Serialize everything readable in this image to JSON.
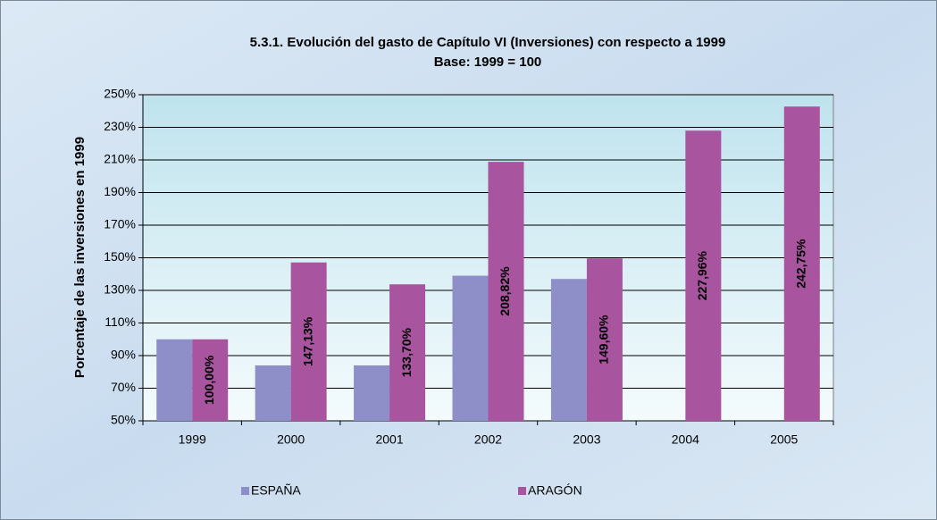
{
  "chart_data": {
    "type": "bar",
    "title": "5.3.1. Evolución del gasto de Capítulo VI (Inversiones) con respecto a 1999",
    "subtitle": "Base: 1999 = 100",
    "y_label": "Porcentaje de las inversiones en 1999",
    "categories": [
      "1999",
      "2000",
      "2001",
      "2002",
      "2003",
      "2004",
      "2005"
    ],
    "series": [
      {
        "name": "ESPAÑA",
        "color": "#8e8ec8",
        "values": [
          100,
          84,
          84,
          139,
          137,
          null,
          null
        ]
      },
      {
        "name": "ARAGÓN",
        "color": "#a8549e",
        "values": [
          100,
          147.13,
          133.7,
          208.82,
          149.6,
          227.96,
          242.75
        ],
        "value_labels": [
          "100,00%",
          "147,13%",
          "133,70%",
          "208,82%",
          "149,60%",
          "227,96%",
          "242,75%"
        ]
      }
    ],
    "ylim": [
      50,
      250
    ],
    "yticks": [
      {
        "value": 50,
        "label": "50%"
      },
      {
        "value": 70,
        "label": "70%"
      },
      {
        "value": 90,
        "label": "90%"
      },
      {
        "value": 110,
        "label": "110%"
      },
      {
        "value": 130,
        "label": "130%"
      },
      {
        "value": 150,
        "label": "150%"
      },
      {
        "value": 170,
        "label": "170%"
      },
      {
        "value": 190,
        "label": "190%"
      },
      {
        "value": 210,
        "label": "210%"
      },
      {
        "value": 230,
        "label": "230%"
      },
      {
        "value": 250,
        "label": "250%"
      }
    ],
    "grid": true
  }
}
